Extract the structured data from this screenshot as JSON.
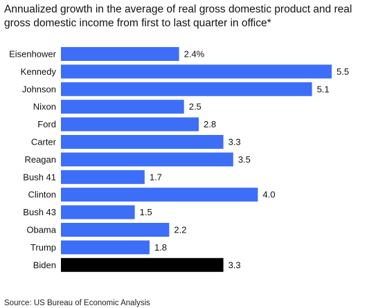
{
  "chart_data": {
    "type": "bar",
    "orientation": "horizontal",
    "title": "Annualized growth in the average of real gross domestic product and real gross domestic income from first to last quarter in office*",
    "categories": [
      "Eisenhower",
      "Kennedy",
      "Johnson",
      "Nixon",
      "Ford",
      "Carter",
      "Reagan",
      "Bush 41",
      "Clinton",
      "Bush 43",
      "Obama",
      "Trump",
      "Biden"
    ],
    "values": [
      2.4,
      5.5,
      5.1,
      2.5,
      2.8,
      3.3,
      3.5,
      1.7,
      4.0,
      1.5,
      2.2,
      1.8,
      3.3
    ],
    "data_labels": [
      "2.4%",
      "5.5",
      "5.1",
      "2.5",
      "2.8",
      "3.3",
      "3.5",
      "1.7",
      "4.0",
      "1.5",
      "2.2",
      "1.8",
      "3.3"
    ],
    "bar_colors": [
      "#3d6ef7",
      "#3d6ef7",
      "#3d6ef7",
      "#3d6ef7",
      "#3d6ef7",
      "#3d6ef7",
      "#3d6ef7",
      "#3d6ef7",
      "#3d6ef7",
      "#3d6ef7",
      "#3d6ef7",
      "#3d6ef7",
      "#000000"
    ],
    "xlim": [
      0,
      5.5
    ],
    "grid": false,
    "legend": "none",
    "source": "Source: US Bureau of Economic Analysis"
  }
}
